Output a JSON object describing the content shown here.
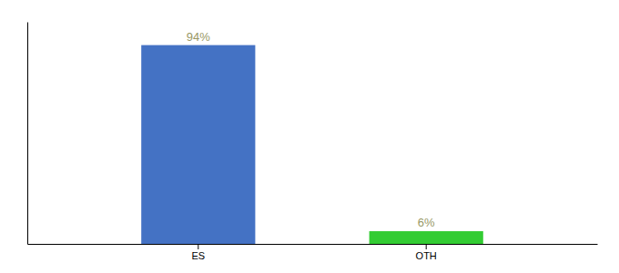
{
  "chart_data": {
    "type": "bar",
    "categories": [
      "ES",
      "OTH"
    ],
    "values": [
      94,
      6
    ],
    "value_labels": [
      "94%",
      "6%"
    ],
    "colors": [
      "#4472c4",
      "#33cc33"
    ],
    "ylim": [
      0,
      105
    ],
    "data_labels": true,
    "tick_labels": "x"
  }
}
